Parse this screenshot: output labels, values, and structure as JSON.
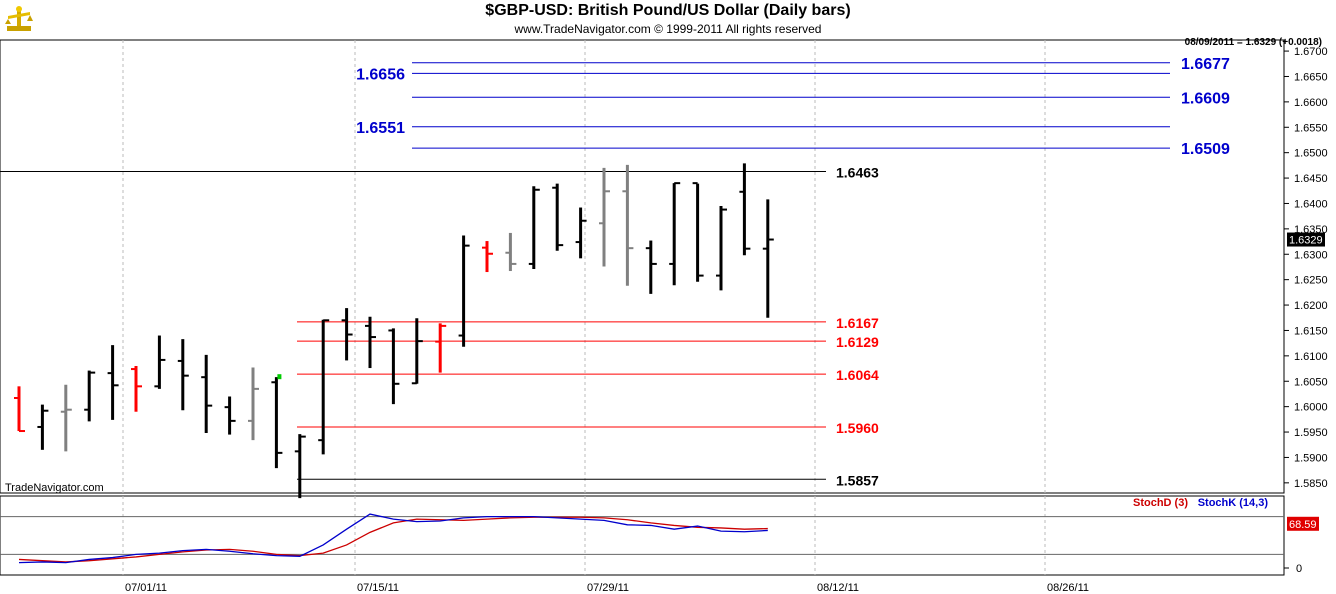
{
  "header": {
    "title": "$GBP-USD:  British Pound/US Dollar  (Daily bars)",
    "subtitle": "www.TradeNavigator.com © 1999-2011 All rights reserved",
    "last_price": "08/09/2011 = 1.6329 (+0.0018)"
  },
  "watermark": "TradeNavigator.com",
  "colors": {
    "up": "#000000",
    "down": "#ff0000",
    "neutral": "#808080",
    "blue": "#0000cc",
    "stochD": "#cc0000",
    "stochK": "#0000cc"
  },
  "chart_data": [
    {
      "type": "ohlc",
      "title": "$GBP-USD:  British Pound/US Dollar  (Daily bars)",
      "ylim": [
        1.582,
        1.67
      ],
      "y_ticks": [
        "1.6700",
        "1.6650",
        "1.6600",
        "1.6550",
        "1.6500",
        "1.6450",
        "1.6400",
        "1.6350",
        "1.6300",
        "1.6250",
        "1.6200",
        "1.6150",
        "1.6100",
        "1.6050",
        "1.6000",
        "1.5950",
        "1.5900",
        "1.5850"
      ],
      "x_ticks": [
        "07/01/11",
        "07/15/11",
        "07/29/11",
        "08/12/11",
        "08/26/11"
      ],
      "current_value_label": "1.6329",
      "bars": [
        {
          "date": "06/24/11",
          "o": 1.6017,
          "h": 1.604,
          "l": 1.5952,
          "c": 1.5952,
          "color": "red"
        },
        {
          "date": "06/27/11",
          "o": 1.596,
          "h": 1.6004,
          "l": 1.5915,
          "c": 1.5992,
          "color": "black"
        },
        {
          "date": "06/28/11",
          "o": 1.599,
          "h": 1.6043,
          "l": 1.5912,
          "c": 1.5994,
          "color": "gray"
        },
        {
          "date": "06/29/11",
          "o": 1.5994,
          "h": 1.6071,
          "l": 1.5971,
          "c": 1.6067,
          "color": "black"
        },
        {
          "date": "06/30/11",
          "o": 1.6066,
          "h": 1.6121,
          "l": 1.5974,
          "c": 1.6042,
          "color": "black"
        },
        {
          "date": "07/01/11",
          "o": 1.6074,
          "h": 1.608,
          "l": 1.599,
          "c": 1.604,
          "color": "red"
        },
        {
          "date": "07/04/11",
          "o": 1.604,
          "h": 1.614,
          "l": 1.6035,
          "c": 1.6092,
          "color": "black"
        },
        {
          "date": "07/05/11",
          "o": 1.609,
          "h": 1.6133,
          "l": 1.5993,
          "c": 1.6061,
          "color": "black"
        },
        {
          "date": "07/06/11",
          "o": 1.6058,
          "h": 1.6102,
          "l": 1.5948,
          "c": 1.6002,
          "color": "black"
        },
        {
          "date": "07/07/11",
          "o": 1.5999,
          "h": 1.602,
          "l": 1.5945,
          "c": 1.5972,
          "color": "black"
        },
        {
          "date": "07/08/11",
          "o": 1.5972,
          "h": 1.6077,
          "l": 1.5934,
          "c": 1.6035,
          "color": "gray"
        },
        {
          "date": "07/11/11",
          "o": 1.6048,
          "h": 1.6058,
          "l": 1.5879,
          "c": 1.5909,
          "color": "black"
        },
        {
          "date": "07/12/11",
          "o": 1.5912,
          "h": 1.5946,
          "l": 1.582,
          "c": 1.5941,
          "color": "black"
        },
        {
          "date": "07/13/11",
          "o": 1.5934,
          "h": 1.6171,
          "l": 1.5906,
          "c": 1.617,
          "color": "black"
        },
        {
          "date": "07/14/11",
          "o": 1.617,
          "h": 1.6194,
          "l": 1.6091,
          "c": 1.6142,
          "color": "black"
        },
        {
          "date": "07/15/11",
          "o": 1.6159,
          "h": 1.6177,
          "l": 1.6076,
          "c": 1.6137,
          "color": "black"
        },
        {
          "date": "07/18/11",
          "o": 1.615,
          "h": 1.6154,
          "l": 1.6005,
          "c": 1.6045,
          "color": "black"
        },
        {
          "date": "07/19/11",
          "o": 1.6046,
          "h": 1.6174,
          "l": 1.6045,
          "c": 1.6129,
          "color": "black"
        },
        {
          "date": "07/20/11",
          "o": 1.6128,
          "h": 1.6164,
          "l": 1.6067,
          "c": 1.6159,
          "color": "red"
        },
        {
          "date": "07/21/11",
          "o": 1.614,
          "h": 1.6337,
          "l": 1.6118,
          "c": 1.6317,
          "color": "black"
        },
        {
          "date": "07/22/11",
          "o": 1.6313,
          "h": 1.6326,
          "l": 1.6265,
          "c": 1.6301,
          "color": "red"
        },
        {
          "date": "07/25/11",
          "o": 1.6303,
          "h": 1.6342,
          "l": 1.6267,
          "c": 1.6281,
          "color": "gray"
        },
        {
          "date": "07/26/11",
          "o": 1.6281,
          "h": 1.6434,
          "l": 1.6271,
          "c": 1.6427,
          "color": "black"
        },
        {
          "date": "07/27/11",
          "o": 1.6431,
          "h": 1.6439,
          "l": 1.6307,
          "c": 1.6318,
          "color": "black"
        },
        {
          "date": "07/28/11",
          "o": 1.6324,
          "h": 1.6392,
          "l": 1.6292,
          "c": 1.6366,
          "color": "black"
        },
        {
          "date": "07/29/11",
          "o": 1.6361,
          "h": 1.647,
          "l": 1.6276,
          "c": 1.6424,
          "color": "gray"
        },
        {
          "date": "08/01/11",
          "o": 1.6424,
          "h": 1.6476,
          "l": 1.6238,
          "c": 1.6312,
          "color": "gray"
        },
        {
          "date": "08/02/11",
          "o": 1.6312,
          "h": 1.6327,
          "l": 1.6222,
          "c": 1.6281,
          "color": "black"
        },
        {
          "date": "08/03/11",
          "o": 1.6281,
          "h": 1.644,
          "l": 1.6239,
          "c": 1.644,
          "color": "black"
        },
        {
          "date": "08/04/11",
          "o": 1.644,
          "h": 1.6439,
          "l": 1.6246,
          "c": 1.6258,
          "color": "black"
        },
        {
          "date": "08/05/11",
          "o": 1.6258,
          "h": 1.6395,
          "l": 1.6229,
          "c": 1.6388,
          "color": "black"
        },
        {
          "date": "08/08/11",
          "o": 1.6423,
          "h": 1.6479,
          "l": 1.6298,
          "c": 1.6311,
          "color": "black"
        },
        {
          "date": "08/09/11",
          "o": 1.6311,
          "h": 1.6408,
          "l": 1.6175,
          "c": 1.6329,
          "color": "black"
        }
      ],
      "levels": [
        {
          "value": 1.6463,
          "label": "1.6463",
          "color": "#000000",
          "side": "right"
        },
        {
          "value": 1.6167,
          "label": "1.6167",
          "color": "#ff0000",
          "side": "right"
        },
        {
          "value": 1.6129,
          "label": "1.6129",
          "color": "#ff0000",
          "side": "right"
        },
        {
          "value": 1.6064,
          "label": "1.6064",
          "color": "#ff0000",
          "side": "right"
        },
        {
          "value": 1.596,
          "label": "1.5960",
          "color": "#ff0000",
          "side": "right"
        },
        {
          "value": 1.5857,
          "label": "1.5857",
          "color": "#000000",
          "side": "right"
        },
        {
          "value": 1.6677,
          "label": "1.6677",
          "color": "#0000cc",
          "side": "far"
        },
        {
          "value": 1.6656,
          "label": "1.6656",
          "color": "#0000cc",
          "side": "left"
        },
        {
          "value": 1.6609,
          "label": "1.6609",
          "color": "#0000cc",
          "side": "far"
        },
        {
          "value": 1.6551,
          "label": "1.6551",
          "color": "#0000cc",
          "side": "left"
        },
        {
          "value": 1.6509,
          "label": "1.6509",
          "color": "#0000cc",
          "side": "far"
        }
      ]
    },
    {
      "type": "line",
      "legend": [
        "StochD (3)",
        "StochK (14,3)"
      ],
      "y_ticks": [
        "0"
      ],
      "current_value_label": "68.59",
      "ylim": [
        0,
        100
      ],
      "series": [
        {
          "name": "StochD (3)",
          "color": "#cc0000",
          "values": [
            12,
            10,
            8,
            10,
            13,
            16,
            20,
            24,
            27,
            28,
            25,
            20,
            18,
            22,
            35,
            55,
            70,
            76,
            75,
            74,
            76,
            78,
            79,
            79,
            79,
            78,
            75,
            70,
            66,
            63,
            62,
            60,
            61
          ]
        },
        {
          "name": "StochK (14,3)",
          "color": "#0000cc",
          "values": [
            7,
            8,
            7,
            12,
            15,
            20,
            22,
            26,
            28,
            25,
            21,
            18,
            17,
            35,
            60,
            84,
            76,
            72,
            73,
            78,
            80,
            80,
            80,
            78,
            76,
            74,
            67,
            66,
            60,
            65,
            57,
            56,
            58
          ]
        }
      ]
    }
  ]
}
